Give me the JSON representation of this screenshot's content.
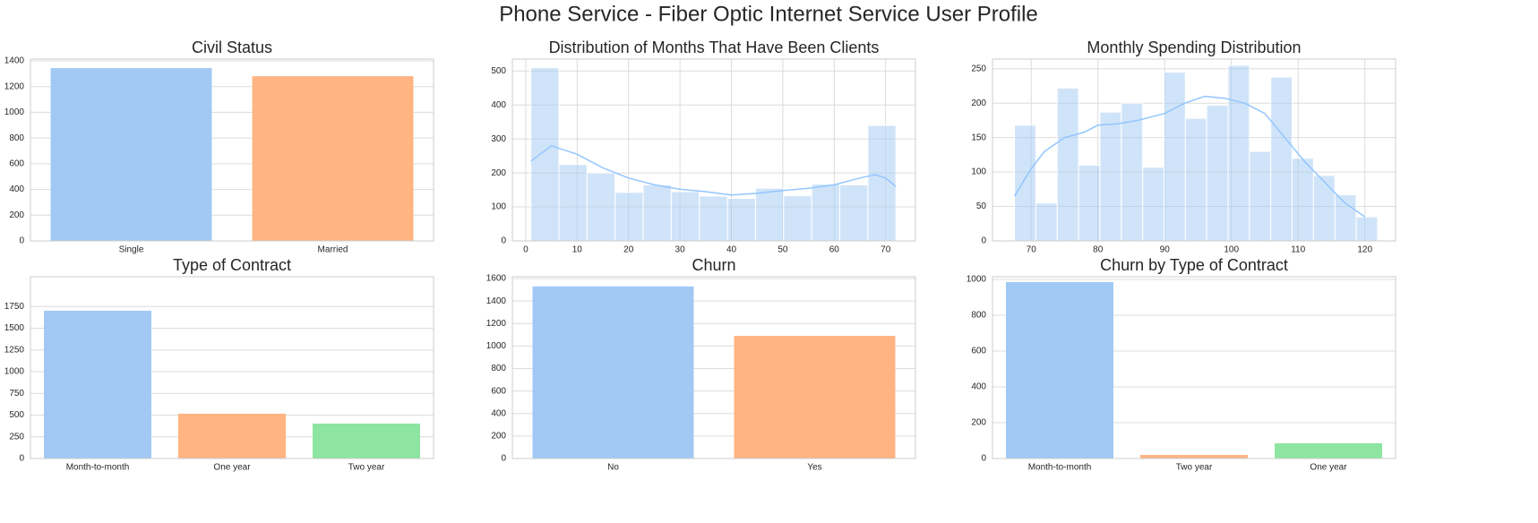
{
  "title": "Phone Service - Fiber Optic Internet Service User Profile",
  "chart_data": [
    {
      "type": "bar",
      "title": "Civil Status",
      "categories": [
        "Single",
        "Married"
      ],
      "values": [
        1344,
        1281
      ],
      "colors": [
        "#a1c9f4",
        "#ffb482"
      ],
      "ylim": [
        0,
        1414
      ],
      "yticks": [
        0,
        200,
        400,
        600,
        800,
        1000,
        1200,
        1400
      ],
      "grid": "y"
    },
    {
      "type": "histogram",
      "title": "Distribution of Months That Have Been Clients",
      "bins": [
        1,
        6.46,
        11.92,
        17.38,
        22.85,
        28.31,
        33.77,
        39.23,
        44.69,
        50.15,
        55.62,
        61.08,
        66.54,
        72
      ],
      "values": [
        510,
        225,
        200,
        143,
        165,
        145,
        132,
        125,
        155,
        133,
        167,
        165,
        340
      ],
      "color": "#a1c9f4",
      "kde": {
        "x": [
          1,
          5,
          10,
          15,
          20,
          25,
          30,
          35,
          40,
          45,
          50,
          55,
          60,
          65,
          68,
          70,
          72
        ],
        "values": [
          235,
          280,
          255,
          215,
          185,
          165,
          152,
          145,
          135,
          140,
          148,
          155,
          165,
          185,
          195,
          185,
          160
        ],
        "color": "#92c6ff"
      },
      "xlim": [
        -2.6,
        75.8
      ],
      "xticks": [
        0,
        10,
        20,
        30,
        40,
        50,
        60,
        70
      ],
      "ylim": [
        0,
        535
      ],
      "yticks": [
        0,
        100,
        200,
        300,
        400,
        500
      ],
      "grid": "both"
    },
    {
      "type": "histogram",
      "title": "Monthly Spending Distribution",
      "bins": [
        67.5,
        70.7,
        73.9,
        77.1,
        80.3,
        83.5,
        86.7,
        89.9,
        93.1,
        96.3,
        99.5,
        102.7,
        105.9,
        109.1,
        112.3,
        115.5,
        118.7,
        121.9
      ],
      "values": [
        168,
        55,
        222,
        110,
        187,
        200,
        107,
        245,
        178,
        197,
        255,
        130,
        238,
        120,
        95,
        67,
        35
      ],
      "color": "#a1c9f4",
      "kde": {
        "x": [
          67.5,
          70,
          72,
          75,
          78,
          80,
          83,
          86,
          90,
          93,
          96,
          99,
          102,
          105,
          108,
          111,
          114,
          117,
          120
        ],
        "values": [
          65,
          105,
          130,
          150,
          158,
          168,
          170,
          175,
          185,
          200,
          210,
          207,
          200,
          185,
          150,
          115,
          85,
          55,
          35
        ],
        "color": "#92c6ff"
      },
      "xlim": [
        64.2,
        124.6
      ],
      "xticks": [
        70,
        80,
        90,
        100,
        110,
        120
      ],
      "ylim": [
        0,
        264
      ],
      "yticks": [
        0,
        50,
        100,
        150,
        200,
        250
      ],
      "grid": "both"
    },
    {
      "type": "bar",
      "title": "Type of Contract",
      "categories": [
        "Month-to-month",
        "One year",
        "Two year"
      ],
      "values": [
        1702,
        516,
        402
      ],
      "colors": [
        "#a1c9f4",
        "#ffb482",
        "#8de5a1"
      ],
      "ylim": [
        0,
        2093
      ],
      "yticks": [
        0,
        250,
        500,
        750,
        1000,
        1250,
        1500,
        1750
      ],
      "grid": "y"
    },
    {
      "type": "bar",
      "title": "Churn",
      "categories": [
        "No",
        "Yes"
      ],
      "values": [
        1530,
        1090
      ],
      "colors": [
        "#a1c9f4",
        "#ffb482"
      ],
      "ylim": [
        0,
        1616
      ],
      "yticks": [
        0,
        200,
        400,
        600,
        800,
        1000,
        1200,
        1400,
        1600
      ],
      "grid": "y"
    },
    {
      "type": "bar",
      "title": "Churn by Type of Contract",
      "categories": [
        "Month-to-month",
        "Two year",
        "One year"
      ],
      "values": [
        985,
        20,
        85
      ],
      "colors": [
        "#a1c9f4",
        "#ffb482",
        "#8de5a1"
      ],
      "ylim": [
        0,
        1015
      ],
      "yticks": [
        0,
        200,
        400,
        600,
        800,
        1000
      ],
      "grid": "y"
    }
  ]
}
